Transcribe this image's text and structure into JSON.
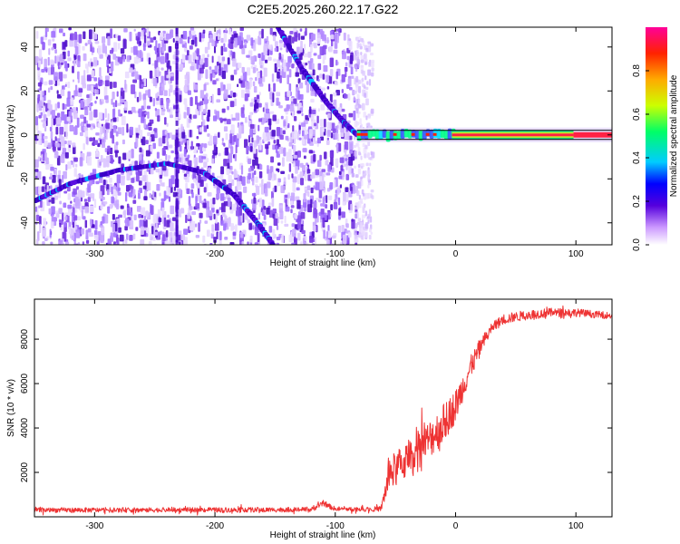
{
  "title": "C2E5.2025.260.22.17.G22",
  "colors": {
    "snr_line": "#ee3333",
    "ridge": "#ffff00",
    "frame": "#000000"
  },
  "chart_data": [
    {
      "type": "heatmap",
      "name": "spectrogram",
      "xlabel": "Height of straight line (km)",
      "ylabel": "Frequency (Hz)",
      "xlim": [
        -350,
        130
      ],
      "ylim": [
        -50,
        49
      ],
      "xticks": [
        -300,
        -200,
        -100,
        0,
        100
      ],
      "yticks": [
        -40,
        -20,
        0,
        20,
        40
      ],
      "colorbar": {
        "label": "Normalized spectral amplitude",
        "range": [
          0,
          1
        ],
        "ticks": [
          "0.0",
          "0.2",
          "0.4",
          "0.6",
          "0.8"
        ],
        "tick_values": [
          0,
          0.2,
          0.4,
          0.6,
          0.8
        ]
      },
      "noise_region_x": [
        -350,
        -82
      ],
      "carrier": {
        "frequency_hz": 0,
        "x_start": -82,
        "x_end": 130,
        "strong_x_start": -3,
        "strong_x_end": 98
      },
      "features": [
        {
          "name": "descending-arc",
          "points": [
            [
              -148,
              49
            ],
            [
              -128,
              30
            ],
            [
              -108,
              15
            ],
            [
              -92,
              5
            ],
            [
              -82,
              0
            ]
          ]
        },
        {
          "name": "lower-arc",
          "points": [
            [
              -350,
              -30
            ],
            [
              -320,
              -22
            ],
            [
              -280,
              -16
            ],
            [
              -240,
              -13
            ],
            [
              -210,
              -17
            ],
            [
              -185,
              -27
            ],
            [
              -165,
              -40
            ],
            [
              -152,
              -50
            ]
          ]
        },
        {
          "name": "vertical-line",
          "points": [
            [
              -232,
              49
            ],
            [
              -232,
              -50
            ]
          ]
        }
      ]
    },
    {
      "type": "line",
      "name": "snr",
      "xlabel": "Height of straight line (km)",
      "ylabel": "SNR (10 * v/v)",
      "xlim": [
        -350,
        130
      ],
      "ylim": [
        0,
        9800
      ],
      "xticks": [
        -300,
        -200,
        -100,
        0,
        100
      ],
      "yticks": [
        2000,
        4000,
        6000,
        8000
      ],
      "trend": {
        "x": [
          -350,
          -120,
          -110,
          -100,
          -62,
          -55,
          -40,
          -25,
          -10,
          0,
          10,
          20,
          30,
          40,
          60,
          80,
          100,
          130
        ],
        "y": [
          300,
          320,
          600,
          350,
          350,
          1900,
          2600,
          3300,
          4200,
          5000,
          6400,
          7600,
          8500,
          8900,
          9100,
          9200,
          9200,
          9050
        ]
      },
      "noise": {
        "x": [
          -350,
          -62,
          -55,
          -10,
          30,
          130
        ],
        "amplitude": [
          110,
          110,
          800,
          900,
          250,
          150
        ]
      }
    }
  ]
}
